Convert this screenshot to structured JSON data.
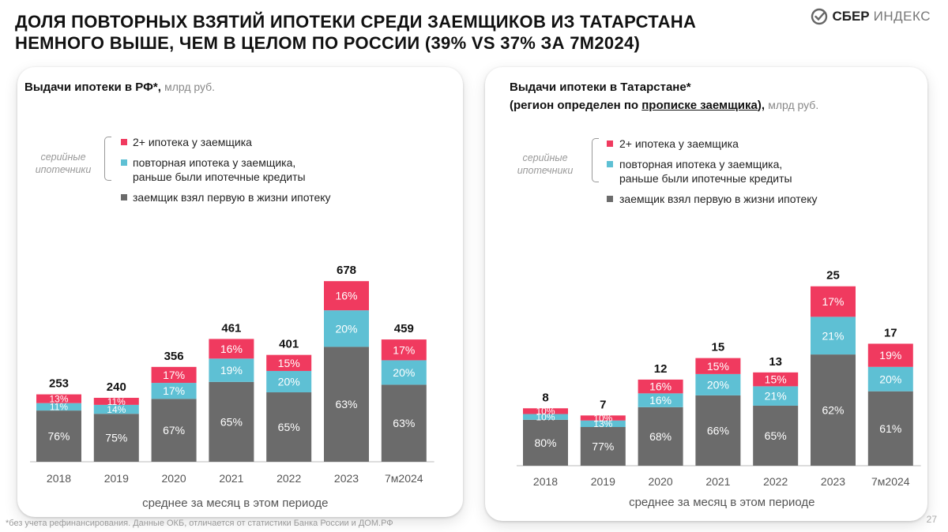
{
  "header": {
    "title_line1": "ДОЛЯ ПОВТОРНЫХ ВЗЯТИЙ ИПОТЕКИ СРЕДИ ЗАЕМЩИКОВ ИЗ ТАТАРСТАНА",
    "title_line2": "НЕМНОГО ВЫШЕ, ЧЕМ В ЦЕЛОМ ПО РОССИИ (39% VS 37% ЗА 7М2024)",
    "logo_bold": "СБЕР",
    "logo_light": "ИНДЕКС"
  },
  "colors": {
    "second_plus": "#f03a5f",
    "repeat": "#5ec0d4",
    "first": "#6b6b6b",
    "axis": "#bbbbbb"
  },
  "legend": {
    "serial": "серийные ипотечники",
    "second_plus": "2+ ипотека у заемщика",
    "repeat_line1": "повторная ипотека у заемщика,",
    "repeat_line2": "раньше были ипотечные кредиты",
    "first": "заемщик взял первую в жизни ипотеку"
  },
  "chart_data": [
    {
      "type": "bar",
      "title": "Выдачи ипотеки в РФ*,",
      "unit": "млрд руб.",
      "xlabel": "среднее за месяц в этом периоде",
      "categories": [
        "2018",
        "2019",
        "2020",
        "2021",
        "2022",
        "2023",
        "7м2024"
      ],
      "totals": [
        253,
        240,
        356,
        461,
        401,
        678,
        459
      ],
      "totals_labels": [
        "253",
        "240",
        "356",
        "461",
        "401",
        "678",
        "459"
      ],
      "ylim": [
        0,
        720
      ],
      "series": [
        {
          "name": "заемщик взял первую в жизни ипотеку",
          "values": [
            76,
            75,
            67,
            65,
            65,
            63,
            63
          ],
          "labels": [
            "76%",
            "75%",
            "67%",
            "65%",
            "65%",
            "63%",
            "63%"
          ]
        },
        {
          "name": "повторная ипотека у заемщика, раньше были ипотечные кредиты",
          "values": [
            11,
            14,
            17,
            19,
            20,
            20,
            20
          ],
          "labels": [
            "11%",
            "14%",
            "17%",
            "19%",
            "20%",
            "20%",
            "20%"
          ]
        },
        {
          "name": "2+ ипотека у заемщика",
          "values": [
            13,
            11,
            17,
            16,
            15,
            16,
            17
          ],
          "labels": [
            "13%",
            "11%",
            "17%",
            "16%",
            "15%",
            "16%",
            "17%"
          ]
        }
      ]
    },
    {
      "type": "bar",
      "title_line1": "Выдачи ипотеки в Татарстане*",
      "title_line2_pre": "(регион определен по ",
      "title_line2_ul": "прописке заемщика",
      "title_line2_post": "),",
      "unit": "млрд руб.",
      "xlabel": "среднее за месяц в этом периоде",
      "categories": [
        "2018",
        "2019",
        "2020",
        "2021",
        "2022",
        "2023",
        "7м2024"
      ],
      "totals": [
        8,
        7,
        12,
        15,
        13,
        25,
        17
      ],
      "totals_labels": [
        "8",
        "7",
        "12",
        "15",
        "13",
        "25",
        "17"
      ],
      "ylim": [
        0,
        26.4
      ],
      "series": [
        {
          "name": "заемщик взял первую в жизни ипотеку",
          "values": [
            80,
            77,
            68,
            66,
            65,
            62,
            61
          ],
          "labels": [
            "80%",
            "77%",
            "68%",
            "66%",
            "65%",
            "62%",
            "61%"
          ]
        },
        {
          "name": "повторная ипотека у заемщика, раньше были ипотечные кредиты",
          "values": [
            10,
            13,
            16,
            20,
            21,
            21,
            20
          ],
          "labels": [
            "10%",
            "13%",
            "16%",
            "20%",
            "21%",
            "21%",
            "20%"
          ]
        },
        {
          "name": "2+ ипотека у заемщика",
          "values": [
            10,
            10,
            16,
            15,
            15,
            17,
            19
          ],
          "labels": [
            "10%",
            "10%",
            "16%",
            "15%",
            "15%",
            "17%",
            "19%"
          ]
        }
      ]
    }
  ],
  "footnote": "*без учета рефинансирования. Данные ОКБ, отличается от статистики Банка России и ДОМ.РФ",
  "page_number": "27"
}
